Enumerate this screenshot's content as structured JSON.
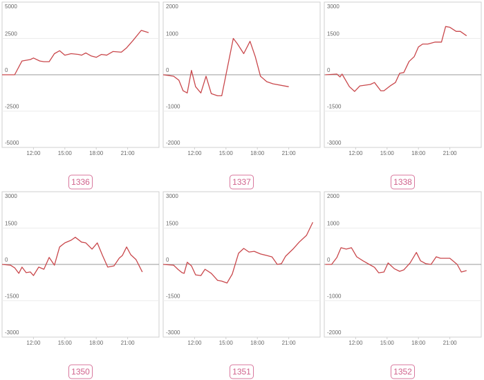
{
  "chart_data": [
    {
      "type": "line",
      "title": "1336",
      "color": "#c9474b",
      "x": [
        9,
        10.2,
        10.9,
        11.7,
        12,
        12.6,
        13,
        13.5,
        14,
        14.5,
        15,
        15.6,
        16.3,
        16.6,
        17,
        17.5,
        18,
        18.5,
        19,
        19.6,
        20.4,
        20.9,
        21.5,
        22.3,
        23
      ],
      "values": [
        0,
        0,
        950,
        1050,
        1150,
        950,
        900,
        900,
        1450,
        1650,
        1350,
        1450,
        1400,
        1350,
        1500,
        1300,
        1200,
        1400,
        1350,
        1600,
        1550,
        1850,
        2350,
        3050,
        2900
      ],
      "xlim": [
        9,
        24
      ],
      "xticks": [
        {
          "value": 12,
          "label": "12:00"
        },
        {
          "value": 15,
          "label": "15:00"
        },
        {
          "value": 18,
          "label": "18:00"
        },
        {
          "value": 21,
          "label": "21:00"
        }
      ],
      "ylim": [
        -5000,
        5000
      ],
      "yticks": [
        5000,
        2500,
        0,
        -2500,
        -5000
      ],
      "grid": true
    },
    {
      "type": "line",
      "title": "1337",
      "color": "#c9474b",
      "x": [
        9,
        10,
        10.5,
        10.9,
        11.3,
        11.7,
        12.1,
        12.6,
        13.1,
        13.6,
        14.2,
        14.6,
        15.7,
        16.1,
        16.7,
        17.3,
        17.8,
        18.3,
        18.9,
        19.5,
        21
      ],
      "values": [
        0,
        -40,
        -150,
        -440,
        -500,
        120,
        -330,
        -500,
        -40,
        -520,
        -580,
        -580,
        1000,
        850,
        580,
        920,
        500,
        -40,
        -190,
        -250,
        -330
      ],
      "xlim": [
        9,
        24
      ],
      "xticks": [
        {
          "value": 12,
          "label": "12:00"
        },
        {
          "value": 15,
          "label": "15:00"
        },
        {
          "value": 18,
          "label": "18:00"
        },
        {
          "value": 21,
          "label": "21:00"
        }
      ],
      "ylim": [
        -2000,
        2000
      ],
      "yticks": [
        2000,
        1000,
        0,
        -1000,
        -2000
      ],
      "grid": true
    },
    {
      "type": "line",
      "title": "1338",
      "color": "#c9474b",
      "x": [
        9.1,
        10.2,
        10.5,
        10.7,
        11.4,
        11.9,
        12.4,
        13.4,
        13.8,
        14.4,
        14.7,
        15.3,
        15.8,
        16.2,
        16.6,
        17.1,
        17.6,
        18,
        18.4,
        18.9,
        19.6,
        20.2,
        20.6,
        21,
        21.6,
        22,
        22.6
      ],
      "values": [
        0,
        30,
        -90,
        30,
        -490,
        -690,
        -460,
        -400,
        -320,
        -660,
        -660,
        -460,
        -320,
        60,
        90,
        550,
        750,
        1150,
        1270,
        1270,
        1350,
        1350,
        1990,
        1960,
        1790,
        1790,
        1610
      ],
      "xlim": [
        9,
        24
      ],
      "xticks": [
        {
          "value": 12,
          "label": "12:00"
        },
        {
          "value": 15,
          "label": "15:00"
        },
        {
          "value": 18,
          "label": "18:00"
        },
        {
          "value": 21,
          "label": "21:00"
        }
      ],
      "ylim": [
        -3000,
        3000
      ],
      "yticks": [
        3000,
        1500,
        0,
        -1500,
        -3000
      ],
      "grid": true
    },
    {
      "type": "line",
      "title": "1350",
      "color": "#c9474b",
      "x": [
        9,
        9.8,
        10.2,
        10.6,
        10.9,
        11.3,
        11.7,
        12,
        12.5,
        13,
        13.5,
        14,
        14.5,
        15,
        15.6,
        16,
        16.6,
        17,
        17.6,
        18.1,
        18.6,
        19.1,
        19.7,
        20.2,
        20.5,
        20.9,
        21.3,
        21.8,
        22.4
      ],
      "values": [
        0,
        -30,
        -140,
        -370,
        -110,
        -340,
        -310,
        -460,
        -110,
        -200,
        290,
        -30,
        720,
        890,
        1000,
        1120,
        920,
        890,
        630,
        890,
        370,
        -110,
        -60,
        260,
        370,
        720,
        400,
        200,
        -310
      ],
      "xlim": [
        9,
        24
      ],
      "xticks": [
        {
          "value": 12,
          "label": "12:00"
        },
        {
          "value": 15,
          "label": "15:00"
        },
        {
          "value": 18,
          "label": "18:00"
        },
        {
          "value": 21,
          "label": "21:00"
        }
      ],
      "ylim": [
        -3000,
        3000
      ],
      "yticks": [
        3000,
        1500,
        0,
        -1500,
        -3000
      ],
      "grid": true
    },
    {
      "type": "line",
      "title": "1351",
      "color": "#c9474b",
      "x": [
        9,
        10,
        10.4,
        10.8,
        11,
        11.3,
        11.7,
        12.1,
        12.6,
        13,
        13.6,
        14.2,
        14.6,
        15.1,
        15.6,
        16.2,
        16.7,
        17.2,
        17.7,
        18.3,
        18.9,
        19.4,
        19.9,
        20.3,
        20.7,
        21.4,
        22,
        22.7,
        23.3
      ],
      "values": [
        0,
        -30,
        -200,
        -340,
        -370,
        90,
        -60,
        -430,
        -460,
        -200,
        -370,
        -660,
        -690,
        -770,
        -400,
        460,
        660,
        510,
        540,
        430,
        370,
        310,
        0,
        30,
        340,
        630,
        920,
        1200,
        1740
      ],
      "xlim": [
        9,
        24
      ],
      "xticks": [
        {
          "value": 12,
          "label": "12:00"
        },
        {
          "value": 15,
          "label": "15:00"
        },
        {
          "value": 18,
          "label": "18:00"
        },
        {
          "value": 21,
          "label": "21:00"
        }
      ],
      "ylim": [
        -3000,
        3000
      ],
      "yticks": [
        3000,
        1500,
        0,
        -1500,
        -3000
      ],
      "grid": true
    },
    {
      "type": "line",
      "title": "1352",
      "color": "#c9474b",
      "x": [
        9.1,
        9.7,
        10.2,
        10.6,
        11.1,
        11.6,
        12.1,
        12.7,
        13.3,
        13.8,
        14.2,
        14.7,
        15.1,
        15.7,
        16.2,
        16.6,
        17.2,
        17.8,
        18.2,
        18.7,
        19.2,
        19.7,
        20.1,
        20.6,
        21,
        21.7,
        22.1,
        22.6
      ],
      "values": [
        0,
        0,
        190,
        460,
        420,
        460,
        210,
        100,
        0,
        -80,
        -230,
        -210,
        40,
        -120,
        -190,
        -150,
        40,
        330,
        100,
        20,
        0,
        210,
        170,
        170,
        170,
        0,
        -210,
        -170
      ],
      "xlim": [
        9,
        24
      ],
      "xticks": [
        {
          "value": 12,
          "label": "12:00"
        },
        {
          "value": 15,
          "label": "15:00"
        },
        {
          "value": 18,
          "label": "18:00"
        },
        {
          "value": 21,
          "label": "21:00"
        }
      ],
      "ylim": [
        -2000,
        2000
      ],
      "yticks": [
        2000,
        1000,
        0,
        -1000,
        -2000
      ],
      "grid": true
    }
  ]
}
